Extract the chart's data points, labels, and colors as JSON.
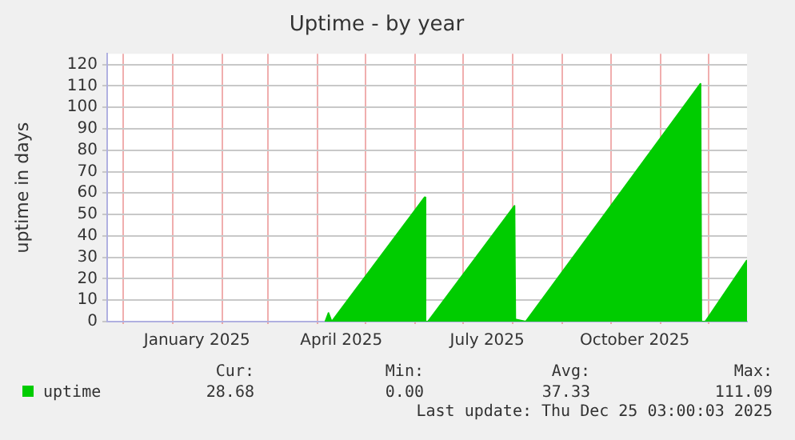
{
  "chart_data": {
    "type": "area",
    "title": "Uptime - by year",
    "ylabel": "uptime in days",
    "x": [
      "2025-04-06",
      "2025-04-08",
      "2025-04-10",
      "2025-06-07",
      "2025-06-07T12:00",
      "2025-06-09",
      "2025-08-02",
      "2025-08-02T12:00",
      "2025-08-03",
      "2025-08-09",
      "2025-11-26",
      "2025-11-26T12:00",
      "2025-11-29",
      "2025-12-25"
    ],
    "series": [
      {
        "name": "uptime",
        "color": "#00cc00",
        "values": [
          0,
          4,
          0,
          58,
          0,
          0,
          54,
          1,
          1,
          0,
          111,
          0,
          0,
          28.68
        ]
      }
    ],
    "xlim": [
      "2024-11-21",
      "2025-12-25"
    ],
    "xticks": [
      {
        "value": "2024-12-01",
        "label": null
      },
      {
        "value": "2025-01-01",
        "label": null
      },
      {
        "value": "2025-01-16",
        "label": "January 2025"
      },
      {
        "value": "2025-02-01",
        "label": null
      },
      {
        "value": "2025-03-01",
        "label": null
      },
      {
        "value": "2025-04-01",
        "label": null
      },
      {
        "value": "2025-04-16",
        "label": "April 2025"
      },
      {
        "value": "2025-05-01",
        "label": null
      },
      {
        "value": "2025-06-01",
        "label": null
      },
      {
        "value": "2025-07-01",
        "label": null
      },
      {
        "value": "2025-07-16",
        "label": "July 2025"
      },
      {
        "value": "2025-08-01",
        "label": null
      },
      {
        "value": "2025-09-01",
        "label": null
      },
      {
        "value": "2025-10-01",
        "label": null
      },
      {
        "value": "2025-10-16",
        "label": "October 2025"
      },
      {
        "value": "2025-11-01",
        "label": null
      },
      {
        "value": "2025-12-01",
        "label": null
      }
    ],
    "ylim": [
      0,
      125
    ],
    "yticks": [
      0,
      10,
      20,
      30,
      40,
      50,
      60,
      70,
      80,
      90,
      100,
      110,
      120
    ],
    "grid": true,
    "legend": "bottom left",
    "annotations": [
      "Cur:",
      "Min:",
      "Avg:",
      "Max:",
      "28.68",
      "0.00",
      "37.33",
      "111.09",
      "Last update: Thu Dec 25 03:00:03 2025"
    ]
  }
}
